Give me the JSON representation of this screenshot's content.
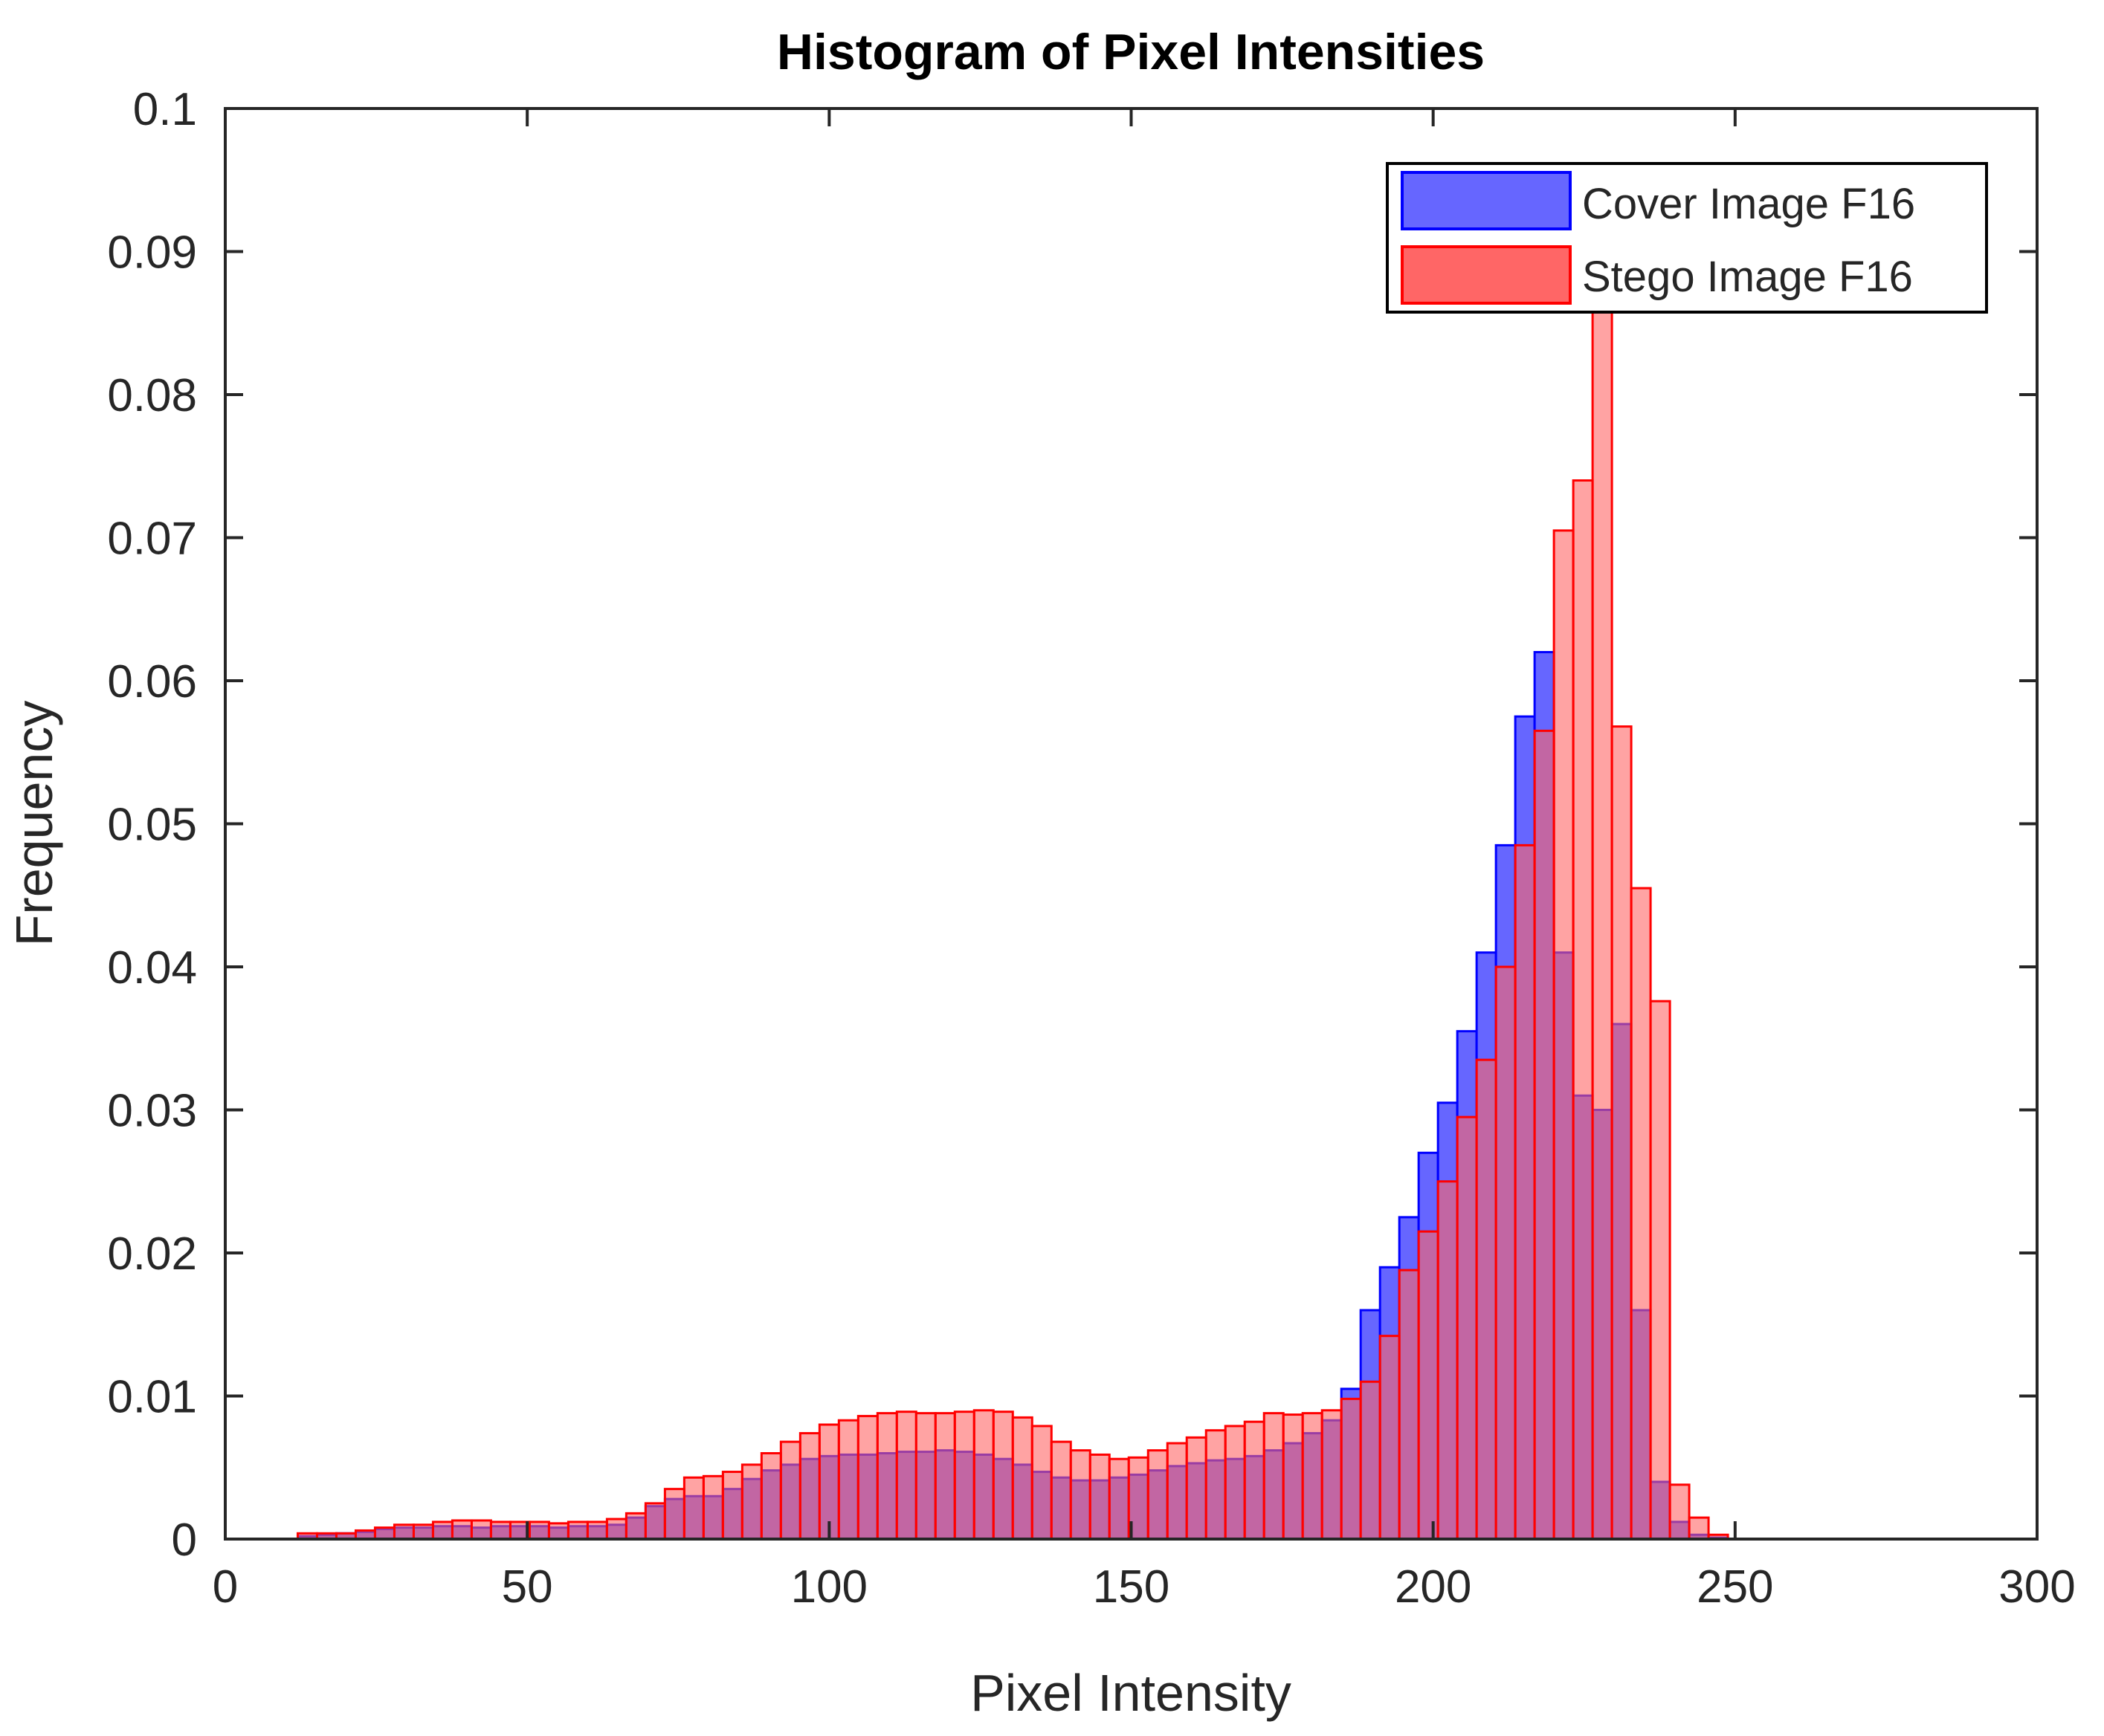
{
  "colors": {
    "cover_fill": "#6666ff",
    "cover_edge": "#0000ff",
    "stego_fill": "#ff6666",
    "stego_edge": "#ff0000",
    "axis": "#262626",
    "text": "#262626"
  },
  "chart_data": {
    "type": "bar",
    "title": "Histogram of Pixel Intensities",
    "xlabel": "Pixel Intensity",
    "ylabel": "Frequency",
    "xlim": [
      0,
      300
    ],
    "ylim": [
      0,
      0.1
    ],
    "xticks": [
      0,
      50,
      100,
      150,
      200,
      250,
      300
    ],
    "xtick_labels": [
      "0",
      "50",
      "100",
      "150",
      "200",
      "250",
      "300"
    ],
    "yticks": [
      0,
      0.01,
      0.02,
      0.03,
      0.04,
      0.05,
      0.06,
      0.07,
      0.08,
      0.09,
      0.1
    ],
    "ytick_labels": [
      "0",
      "0.01",
      "0.02",
      "0.03",
      "0.04",
      "0.05",
      "0.06",
      "0.07",
      "0.08",
      "0.09",
      "0.1"
    ],
    "legend_position": "top-right",
    "bin_width": 3.2,
    "bin_starts": [
      12,
      15.2,
      18.4,
      21.6,
      24.8,
      28,
      31.2,
      34.4,
      37.6,
      40.8,
      44,
      47.2,
      50.4,
      53.6,
      56.8,
      60,
      63.2,
      66.4,
      69.6,
      72.8,
      76,
      79.2,
      82.4,
      85.6,
      88.8,
      92,
      95.2,
      98.4,
      101.6,
      104.8,
      108,
      111.2,
      114.4,
      117.6,
      120.8,
      124,
      127.2,
      130.4,
      133.6,
      136.8,
      140,
      143.2,
      146.4,
      149.6,
      152.8,
      156,
      159.2,
      162.4,
      165.6,
      168.8,
      172,
      175.2,
      178.4,
      181.6,
      184.8,
      188,
      191.2,
      194.4,
      197.6,
      200.8,
      204,
      207.2,
      210.4,
      213.6,
      216.8,
      220,
      223.2,
      226.4,
      229.6,
      232.8,
      236,
      239.2,
      242.4,
      245.6
    ],
    "series": [
      {
        "name": "Cover Image F16",
        "values": [
          0.0002,
          0.0003,
          0.0004,
          0.0005,
          0.0007,
          0.0008,
          0.0008,
          0.0009,
          0.0009,
          0.0008,
          0.0009,
          0.0009,
          0.0009,
          0.0008,
          0.0009,
          0.0009,
          0.001,
          0.0015,
          0.0023,
          0.0028,
          0.003,
          0.003,
          0.0035,
          0.0042,
          0.0048,
          0.0052,
          0.0056,
          0.0058,
          0.0059,
          0.0059,
          0.006,
          0.0061,
          0.0061,
          0.0062,
          0.0061,
          0.0059,
          0.0056,
          0.0052,
          0.0047,
          0.0043,
          0.0041,
          0.0041,
          0.0043,
          0.0045,
          0.0048,
          0.0051,
          0.0053,
          0.0055,
          0.0056,
          0.0058,
          0.0062,
          0.0067,
          0.0074,
          0.0083,
          0.0105,
          0.016,
          0.019,
          0.0225,
          0.027,
          0.0305,
          0.0355,
          0.041,
          0.0485,
          0.0575,
          0.062,
          0.041,
          0.031,
          0.03,
          0.036,
          0.016,
          0.004,
          0.0012,
          0.0003,
          0.0001
        ],
        "fill": "#6666ff",
        "edge": "#0000ff"
      },
      {
        "name": "Stego Image F16",
        "values": [
          0.0004,
          0.0004,
          0.0004,
          0.0006,
          0.0008,
          0.001,
          0.001,
          0.0012,
          0.0013,
          0.0013,
          0.0012,
          0.0012,
          0.0012,
          0.0011,
          0.0012,
          0.0012,
          0.0014,
          0.0018,
          0.0025,
          0.0035,
          0.0043,
          0.0044,
          0.0047,
          0.0052,
          0.006,
          0.0068,
          0.0074,
          0.008,
          0.0083,
          0.0086,
          0.0088,
          0.0089,
          0.0088,
          0.0088,
          0.0089,
          0.009,
          0.0089,
          0.0085,
          0.0079,
          0.0068,
          0.0062,
          0.0059,
          0.0056,
          0.0057,
          0.0062,
          0.0067,
          0.0071,
          0.0076,
          0.0079,
          0.0082,
          0.0088,
          0.0087,
          0.0088,
          0.009,
          0.0098,
          0.011,
          0.0142,
          0.0188,
          0.0215,
          0.025,
          0.0295,
          0.0335,
          0.04,
          0.0485,
          0.0565,
          0.0705,
          0.074,
          0.086,
          0.0568,
          0.0455,
          0.0376,
          0.0038,
          0.0015,
          0.0003
        ],
        "fill": "#ff6666",
        "edge": "#ff0000"
      }
    ]
  }
}
